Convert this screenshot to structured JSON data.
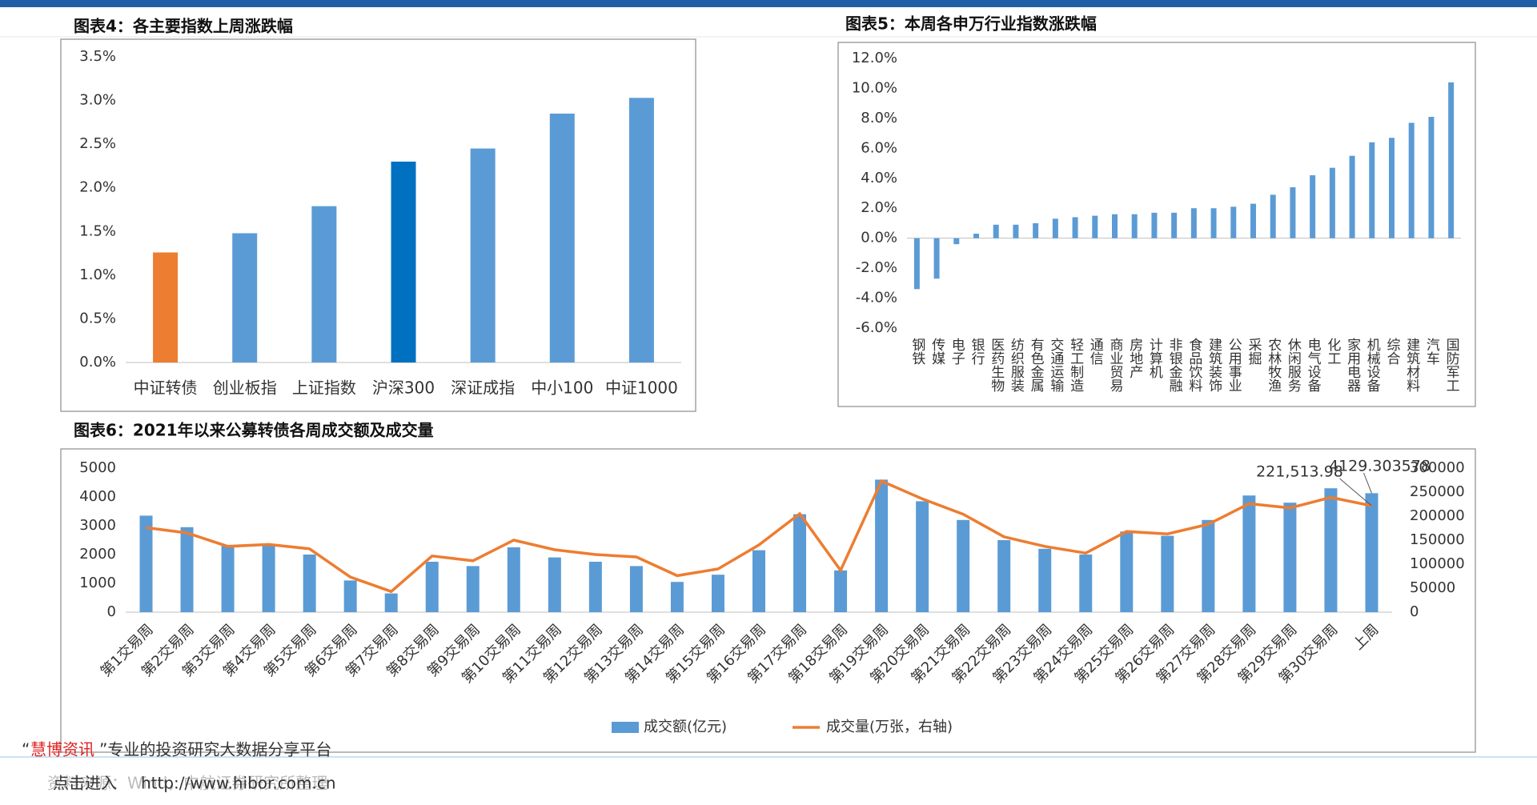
{
  "chart_data": [
    {
      "type": "bar",
      "title": "图表4：各主要指数上周涨跌幅",
      "categories": [
        "中证转债",
        "创业板指",
        "上证指数",
        "沪深300",
        "深证成指",
        "中小100",
        "中证1000"
      ],
      "values": [
        1.26,
        1.48,
        1.79,
        2.3,
        2.45,
        2.85,
        3.03
      ],
      "colors": [
        "#ed7d31",
        "#5b9bd5",
        "#5b9bd5",
        "#0070c0",
        "#5b9bd5",
        "#5b9bd5",
        "#5b9bd5"
      ],
      "ylim": [
        0,
        3.5
      ],
      "yticks": [
        {
          "value": 0,
          "label": "0.0%"
        },
        {
          "value": 0.5,
          "label": "0.5%"
        },
        {
          "value": 1,
          "label": "1.0%"
        },
        {
          "value": 1.5,
          "label": "1.5%"
        },
        {
          "value": 2,
          "label": "2.0%"
        },
        {
          "value": 2.5,
          "label": "2.5%"
        },
        {
          "value": 3,
          "label": "3.0%"
        },
        {
          "value": 3.5,
          "label": "3.5%"
        }
      ],
      "grid": false
    },
    {
      "type": "bar",
      "title": "图表5：本周各申万行业指数涨跌幅",
      "categories": [
        "钢铁",
        "传媒",
        "电子",
        "银行",
        "医药生物",
        "纺织服装",
        "有色金属",
        "交通运输",
        "轻工制造",
        "通信",
        "商业贸易",
        "房地产",
        "计算机",
        "非银金融",
        "食品饮料",
        "建筑装饰",
        "公用事业",
        "采掘",
        "农林牧渔",
        "休闲服务",
        "电气设备",
        "化工",
        "家用电器",
        "机械设备",
        "综合",
        "建筑材料",
        "汽车",
        "国防军工"
      ],
      "values": [
        -3.4,
        -2.7,
        -0.4,
        0.3,
        0.9,
        0.9,
        1.0,
        1.3,
        1.4,
        1.5,
        1.6,
        1.6,
        1.7,
        1.7,
        2.0,
        2.0,
        2.1,
        2.3,
        2.9,
        3.4,
        4.2,
        4.7,
        5.5,
        6.4,
        6.7,
        7.7,
        8.1,
        10.4
      ],
      "color": "#5b9bd5",
      "ylim": [
        -6,
        12
      ],
      "yticks": [
        {
          "value": -6,
          "label": "-6.0%"
        },
        {
          "value": -4,
          "label": "-4.0%"
        },
        {
          "value": -2,
          "label": "-2.0%"
        },
        {
          "value": 0,
          "label": "0.0%"
        },
        {
          "value": 2,
          "label": "2.0%"
        },
        {
          "value": 4,
          "label": "4.0%"
        },
        {
          "value": 6,
          "label": "6.0%"
        },
        {
          "value": 8,
          "label": "8.0%"
        },
        {
          "value": 10,
          "label": "10.0%"
        },
        {
          "value": 12,
          "label": "12.0%"
        }
      ],
      "grid": false
    },
    {
      "type": "combo",
      "title": "图表6：2021年以来公募转债各周成交额及成交量",
      "categories": [
        "第1交易周",
        "第2交易周",
        "第3交易周",
        "第4交易周",
        "第5交易周",
        "第6交易周",
        "第7交易周",
        "第8交易周",
        "第9交易周",
        "第10交易周",
        "第11交易周",
        "第12交易周",
        "第13交易周",
        "第14交易周",
        "第15交易周",
        "第16交易周",
        "第17交易周",
        "第18交易周",
        "第19交易周",
        "第20交易周",
        "第21交易周",
        "第22交易周",
        "第23交易周",
        "第24交易周",
        "第25交易周",
        "第26交易周",
        "第27交易周",
        "第28交易周",
        "第29交易周",
        "第30交易周",
        "上周"
      ],
      "series": [
        {
          "name": "成交额(亿元)",
          "type": "bar",
          "color": "#5b9bd5",
          "values": [
            3350,
            2950,
            2300,
            2350,
            2000,
            1100,
            650,
            1750,
            1600,
            2250,
            1900,
            1750,
            1600,
            1050,
            1300,
            2150,
            3400,
            1450,
            4600,
            3850,
            3200,
            2500,
            2200,
            2000,
            2800,
            2650,
            3200,
            4050,
            3800,
            4300,
            4129.303578
          ],
          "value_labels": [
            null,
            null,
            null,
            null,
            null,
            null,
            null,
            null,
            null,
            null,
            null,
            null,
            null,
            null,
            null,
            null,
            null,
            null,
            null,
            null,
            null,
            null,
            null,
            null,
            null,
            null,
            null,
            null,
            null,
            null,
            "4129.303578"
          ]
        },
        {
          "name": "成交量(万张，右轴)",
          "type": "line",
          "axis": "y2",
          "color": "#ed7d31",
          "values": [
            176000,
            165000,
            137000,
            141000,
            132000,
            73000,
            43000,
            117000,
            107000,
            150000,
            130000,
            120000,
            115000,
            76000,
            90000,
            140000,
            205000,
            87000,
            273000,
            236000,
            204000,
            157000,
            137000,
            123000,
            168000,
            163000,
            183000,
            226000,
            217000,
            239000,
            221513.98
          ],
          "value_labels": [
            null,
            null,
            null,
            null,
            null,
            null,
            null,
            null,
            null,
            null,
            null,
            null,
            null,
            null,
            null,
            null,
            null,
            null,
            null,
            null,
            null,
            null,
            null,
            null,
            null,
            null,
            null,
            null,
            null,
            null,
            "221,513.98"
          ]
        }
      ],
      "ylim": [
        0,
        5000
      ],
      "yticks": [
        0,
        1000,
        2000,
        3000,
        4000,
        5000
      ],
      "y2lim": [
        0,
        300000
      ],
      "y2ticks": [
        0,
        50000,
        100000,
        150000,
        200000,
        250000,
        300000
      ],
      "legend": "bottom",
      "grid": false
    }
  ],
  "footer": {
    "quote_open": "“",
    "brand": "慧博资讯",
    "slogan": "”专业的投资研究大数据分享平台",
    "link_text": "点击进入",
    "url": "http://www.hibor.com.cn",
    "source": "资料来源：Wind，中航证券研究所整理"
  }
}
